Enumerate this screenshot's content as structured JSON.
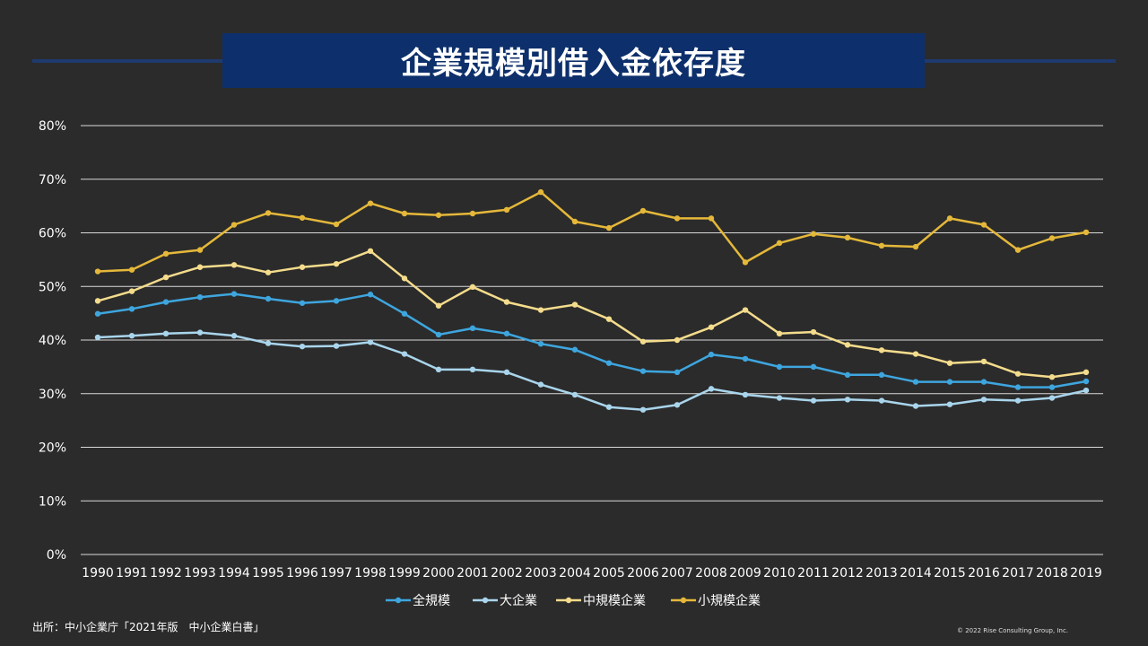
{
  "title": "企業規模別借入金依存度",
  "source": "出所：中小企業庁「2021年版　中小企業白書」",
  "copyright": "© 2022  Rise Consulting Group, Inc.",
  "chart_data": {
    "type": "line",
    "title": "企業規模別借入金依存度",
    "xlabel": "",
    "ylabel": "",
    "ylim": [
      0,
      80
    ],
    "y_ticks": [
      0,
      10,
      20,
      30,
      40,
      50,
      60,
      70,
      80
    ],
    "y_tick_suffix": "%",
    "grid": true,
    "legend_position": "bottom",
    "categories": [
      "1990",
      "1991",
      "1992",
      "1993",
      "1994",
      "1995",
      "1996",
      "1997",
      "1998",
      "1999",
      "2000",
      "2001",
      "2002",
      "2003",
      "2004",
      "2005",
      "2006",
      "2007",
      "2008",
      "2009",
      "2010",
      "2011",
      "2012",
      "2013",
      "2014",
      "2015",
      "2016",
      "2017",
      "2018",
      "2019"
    ],
    "series": [
      {
        "name": "全規模",
        "color": "#3ea6df",
        "values": [
          44.9,
          45.8,
          47.1,
          48.0,
          48.6,
          47.7,
          46.9,
          47.3,
          48.5,
          44.9,
          41.0,
          42.2,
          41.2,
          39.3,
          38.2,
          35.7,
          34.2,
          34.0,
          37.3,
          36.5,
          35.0,
          35.0,
          33.5,
          33.5,
          32.2,
          32.2,
          32.2,
          31.2,
          31.2,
          32.3
        ]
      },
      {
        "name": "大企業",
        "color": "#a9d5ec",
        "values": [
          40.5,
          40.8,
          41.2,
          41.4,
          40.8,
          39.4,
          38.8,
          38.9,
          39.6,
          37.4,
          34.5,
          34.5,
          34.0,
          31.7,
          29.8,
          27.5,
          27.0,
          27.9,
          30.9,
          29.8,
          29.2,
          28.7,
          28.9,
          28.7,
          27.7,
          28.0,
          28.9,
          28.7,
          29.2,
          30.6
        ]
      },
      {
        "name": "中規模企業",
        "color": "#f4dc8c",
        "values": [
          47.3,
          49.1,
          51.7,
          53.6,
          54.0,
          52.6,
          53.6,
          54.2,
          56.6,
          51.5,
          46.4,
          49.9,
          47.1,
          45.6,
          46.6,
          43.9,
          39.7,
          40.0,
          42.4,
          45.6,
          41.2,
          41.5,
          39.1,
          38.1,
          37.4,
          35.7,
          36.0,
          33.7,
          33.1,
          34.0
        ]
      },
      {
        "name": "小規模企業",
        "color": "#e5b83a",
        "values": [
          52.8,
          53.1,
          56.1,
          56.8,
          61.5,
          63.7,
          62.8,
          61.6,
          65.5,
          63.6,
          63.3,
          63.6,
          64.3,
          67.6,
          62.1,
          60.9,
          64.1,
          62.7,
          62.7,
          54.5,
          58.1,
          59.8,
          59.1,
          57.6,
          57.4,
          62.7,
          61.5,
          56.8,
          59.0,
          60.1
        ]
      }
    ]
  }
}
